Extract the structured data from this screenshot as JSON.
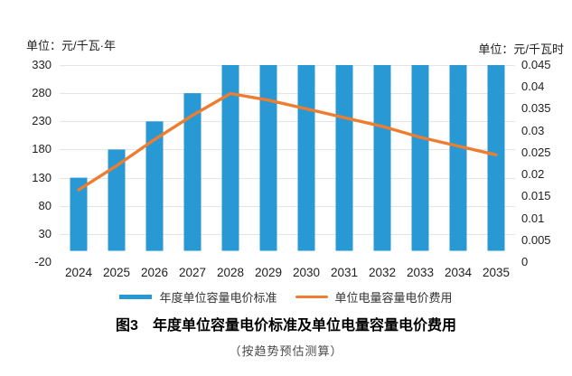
{
  "page": {
    "background": "#ffffff"
  },
  "chart_data": {
    "type": "bar+line",
    "title": "图3　年度单位容量电价标准及单位电量容量电价费用",
    "subtitle": "（按趋势预估测算）",
    "grid": true,
    "grid_color": "#e4e4e4",
    "legend_position": "bottom",
    "categories": [
      "2024",
      "2025",
      "2026",
      "2027",
      "2028",
      "2029",
      "2030",
      "2031",
      "2032",
      "2033",
      "2034",
      "2035"
    ],
    "left_axis": {
      "unit_label": "单位：元/千瓦·年",
      "min": -20,
      "max": 330,
      "ticks": [
        330,
        280,
        230,
        180,
        130,
        80,
        30,
        -20
      ]
    },
    "right_axis": {
      "unit_label": "单位：元/千瓦时",
      "min": 0,
      "max": 0.045,
      "ticks": [
        0.045,
        0.04,
        0.035,
        0.03,
        0.025,
        0.02,
        0.015,
        0.01,
        0.005,
        0
      ]
    },
    "series": [
      {
        "name": "年度单位容量电价标准",
        "type": "bar",
        "axis": "left",
        "color": "#2899d4",
        "values": [
          130,
          180,
          230,
          280,
          330,
          330,
          330,
          330,
          330,
          330,
          330,
          330
        ]
      },
      {
        "name": "单位电量容量电价费用",
        "type": "line",
        "axis": "right",
        "color": "#ed7d31",
        "values": [
          0.0165,
          0.022,
          0.028,
          0.0335,
          0.0385,
          0.037,
          0.035,
          0.033,
          0.031,
          0.0285,
          0.0265,
          0.0245
        ]
      }
    ]
  }
}
